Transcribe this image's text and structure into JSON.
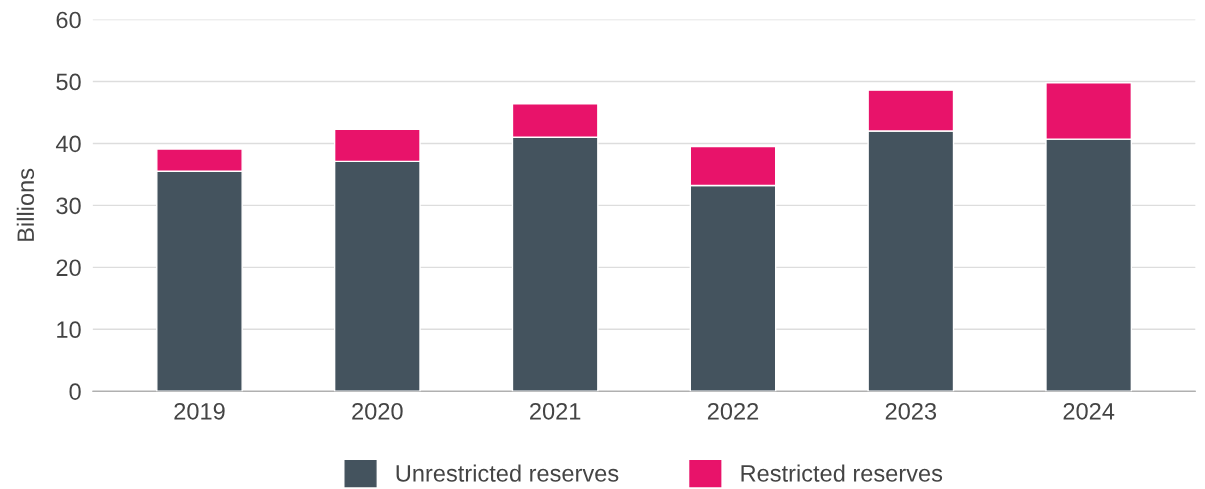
{
  "chart_data": {
    "type": "bar",
    "stacked": true,
    "ylabel": "Billions",
    "categories": [
      "2019",
      "2020",
      "2021",
      "2022",
      "2023",
      "2024"
    ],
    "series": [
      {
        "name": "Unrestricted reserves",
        "color": "#44535e",
        "values": [
          35.5,
          37.1,
          41.0,
          33.2,
          42.0,
          40.7
        ]
      },
      {
        "name": "Restricted reserves",
        "color": "#e8136a",
        "values": [
          3.6,
          5.2,
          5.4,
          6.3,
          6.6,
          9.1
        ]
      }
    ],
    "ylim": [
      0,
      60
    ],
    "yticks": [
      0,
      10,
      20,
      30,
      40,
      50,
      60
    ],
    "grid": "y",
    "legend": "bottom"
  }
}
